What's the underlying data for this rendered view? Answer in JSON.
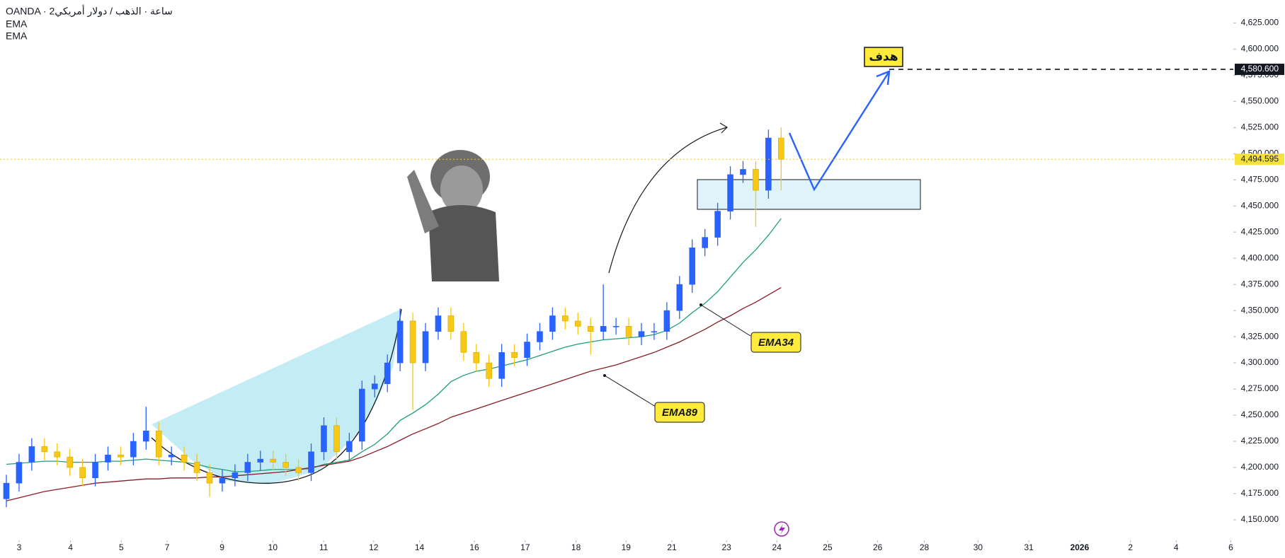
{
  "chart_data": {
    "type": "candlestick",
    "title": "OANDA · 2ساعة · الذهب / دولار أمريكي",
    "bull_color": "#2962ff",
    "bear_color": "#f7c815",
    "grid": false,
    "xlim": [
      -0.5,
      96.6
    ],
    "ylim": [
      4134.4,
      4646.9
    ],
    "candles": {
      "open": [
        4170,
        4185,
        4205,
        4220,
        4215,
        4210,
        4200,
        4190,
        4205,
        4212,
        4210,
        4225,
        4235,
        4210,
        4212,
        4205,
        4195,
        4185,
        4190,
        4195,
        4205,
        4208,
        4205,
        4200,
        4195,
        4215,
        4240,
        4215,
        4225,
        4275,
        4280,
        4300,
        4340,
        4300,
        4330,
        4345,
        4330,
        4310,
        4300,
        4285,
        4310,
        4305,
        4320,
        4330,
        4345,
        4340,
        4335,
        4330,
        4335,
        4335,
        4325,
        4330,
        4330,
        4350,
        4375,
        4410,
        4420,
        4445,
        4480,
        4485,
        4465,
        4515
      ],
      "high": [
        4193,
        4213,
        4228,
        4228,
        4223,
        4218,
        4208,
        4213,
        4220,
        4220,
        4233,
        4258,
        4243,
        4220,
        4220,
        4213,
        4203,
        4198,
        4203,
        4213,
        4216,
        4216,
        4213,
        4208,
        4223,
        4248,
        4248,
        4233,
        4283,
        4288,
        4308,
        4352,
        4348,
        4338,
        4353,
        4353,
        4338,
        4318,
        4308,
        4318,
        4318,
        4328,
        4338,
        4353,
        4353,
        4348,
        4343,
        4375,
        4343,
        4343,
        4338,
        4338,
        4358,
        4383,
        4418,
        4428,
        4453,
        4488,
        4493,
        4493,
        4523,
        4525
      ],
      "low": [
        4162,
        4177,
        4197,
        4207,
        4202,
        4192,
        4182,
        4182,
        4197,
        4202,
        4202,
        4217,
        4202,
        4202,
        4197,
        4187,
        4172,
        4177,
        4182,
        4187,
        4197,
        4197,
        4192,
        4187,
        4187,
        4207,
        4207,
        4207,
        4217,
        4267,
        4272,
        4292,
        4255,
        4292,
        4322,
        4322,
        4302,
        4292,
        4277,
        4277,
        4297,
        4297,
        4312,
        4322,
        4332,
        4327,
        4308,
        4322,
        4327,
        4317,
        4317,
        4322,
        4322,
        4342,
        4367,
        4402,
        4412,
        4437,
        4472,
        4430,
        4457,
        4465
      ],
      "close": [
        4185,
        4205,
        4220,
        4215,
        4210,
        4200,
        4190,
        4205,
        4212,
        4210,
        4225,
        4235,
        4210,
        4212,
        4205,
        4195,
        4185,
        4190,
        4195,
        4205,
        4208,
        4205,
        4200,
        4195,
        4215,
        4240,
        4215,
        4225,
        4275,
        4280,
        4300,
        4340,
        4300,
        4330,
        4345,
        4330,
        4310,
        4300,
        4285,
        4310,
        4305,
        4320,
        4330,
        4345,
        4340,
        4335,
        4330,
        4335,
        4335,
        4325,
        4330,
        4330,
        4350,
        4375,
        4410,
        4420,
        4445,
        4480,
        4485,
        4465,
        4515,
        4494.595
      ]
    },
    "series": [
      {
        "name": "EMA",
        "color": "#1f9e78",
        "values": [
          4203,
          4204,
          4205,
          4206,
          4206,
          4205,
          4205,
          4205,
          4206,
          4206,
          4207,
          4208,
          4207,
          4206,
          4205,
          4203,
          4200,
          4198,
          4196,
          4196,
          4197,
          4198,
          4198,
          4198,
          4199,
          4203,
          4205,
          4207,
          4215,
          4222,
          4232,
          4245,
          4252,
          4260,
          4270,
          4282,
          4288,
          4292,
          4294,
          4297,
          4300,
          4303,
          4307,
          4311,
          4315,
          4318,
          4320,
          4322,
          4323,
          4324,
          4325,
          4327,
          4331,
          4338,
          4348,
          4357,
          4368,
          4382,
          4396,
          4408,
          4422,
          4438
        ]
      },
      {
        "name": "EMA",
        "color": "#8b1c24",
        "values": [
          4168,
          4171,
          4174,
          4177,
          4179,
          4181,
          4183,
          4185,
          4186,
          4187,
          4188,
          4189,
          4189,
          4190,
          4190,
          4190,
          4191,
          4191,
          4192,
          4193,
          4194,
          4195,
          4196,
          4198,
          4200,
          4202,
          4204,
          4206,
          4210,
          4215,
          4220,
          4226,
          4232,
          4237,
          4242,
          4248,
          4252,
          4256,
          4260,
          4264,
          4268,
          4272,
          4276,
          4280,
          4284,
          4288,
          4292,
          4295,
          4298,
          4302,
          4306,
          4310,
          4315,
          4320,
          4326,
          4332,
          4339,
          4345,
          4352,
          4358,
          4365,
          4372
        ]
      }
    ],
    "yticks": [
      {
        "value": 4150,
        "label": "4,150.000"
      },
      {
        "value": 4175,
        "label": "4,175.000"
      },
      {
        "value": 4200,
        "label": "4,200.000"
      },
      {
        "value": 4225,
        "label": "4,225.000"
      },
      {
        "value": 4250,
        "label": "4,250.000"
      },
      {
        "value": 4275,
        "label": "4,275.000"
      },
      {
        "value": 4300,
        "label": "4,300.000"
      },
      {
        "value": 4325,
        "label": "4,325.000"
      },
      {
        "value": 4350,
        "label": "4,350.000"
      },
      {
        "value": 4375,
        "label": "4,375.000"
      },
      {
        "value": 4400,
        "label": "4,400.000"
      },
      {
        "value": 4425,
        "label": "4,425.000"
      },
      {
        "value": 4450,
        "label": "4,450.000"
      },
      {
        "value": 4475,
        "label": "4,475.000"
      },
      {
        "value": 4500,
        "label": "4,500.000"
      },
      {
        "value": 4525,
        "label": "4,525.000"
      },
      {
        "value": 4550,
        "label": "4,550.000"
      },
      {
        "value": 4575,
        "label": "4,575.000"
      },
      {
        "value": 4600,
        "label": "4,600.000"
      },
      {
        "value": 4625,
        "label": "4,625.000"
      }
    ],
    "xticks": [
      {
        "value": 1.0,
        "label": "3"
      },
      {
        "value": 5.05,
        "label": "4"
      },
      {
        "value": 9.05,
        "label": "5"
      },
      {
        "value": 12.66,
        "label": "7"
      },
      {
        "value": 16.98,
        "label": "9"
      },
      {
        "value": 20.98,
        "label": "10"
      },
      {
        "value": 24.98,
        "label": "11"
      },
      {
        "value": 28.92,
        "label": "12"
      },
      {
        "value": 32.53,
        "label": "14"
      },
      {
        "value": 36.85,
        "label": "16"
      },
      {
        "value": 40.85,
        "label": "17"
      },
      {
        "value": 44.85,
        "label": "18"
      },
      {
        "value": 48.79,
        "label": "19"
      },
      {
        "value": 52.4,
        "label": "21"
      },
      {
        "value": 56.7,
        "label": "23"
      },
      {
        "value": 60.66,
        "label": "24"
      },
      {
        "value": 64.66,
        "label": "25"
      },
      {
        "value": 68.6,
        "label": "26"
      },
      {
        "value": 72.27,
        "label": "28"
      },
      {
        "value": 76.5,
        "label": "30"
      },
      {
        "value": 80.5,
        "label": "31"
      },
      {
        "value": 84.5,
        "label": "2026"
      },
      {
        "value": 88.5,
        "label": "2"
      },
      {
        "value": 92.1,
        "label": "4"
      },
      {
        "value": 96.4,
        "label": "6"
      }
    ],
    "price_line": {
      "value": 4494.595,
      "label": "4,494.595"
    },
    "target_line": {
      "value": 4580.6,
      "label": "4,580.600"
    },
    "annotations": [
      "EMA34",
      "EMA89",
      "هدف"
    ]
  }
}
